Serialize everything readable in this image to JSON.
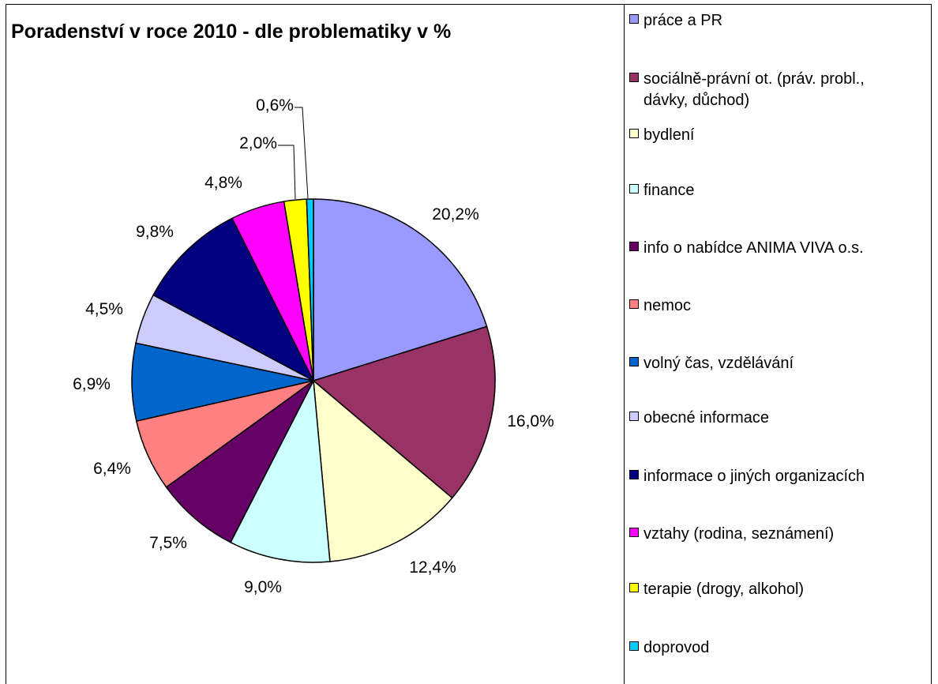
{
  "chart_data": {
    "type": "pie",
    "title": "Poradenství v roce 2010 - dle problematiky v %",
    "legend_position": "right",
    "slices": [
      {
        "name": "práce a PR",
        "value": 20.2,
        "label": "20,2%",
        "color": "#9999ff"
      },
      {
        "name": "sociálně-právní ot. (práv. probl.,\ndávky, důchod)",
        "value": 16.0,
        "label": "16,0%",
        "color": "#993366"
      },
      {
        "name": "bydlení",
        "value": 12.4,
        "label": "12,4%",
        "color": "#ffffcc"
      },
      {
        "name": "finance",
        "value": 9.0,
        "label": "9,0%",
        "color": "#ccffff"
      },
      {
        "name": "info o nabídce ANIMA VIVA o.s.",
        "value": 7.5,
        "label": "7,5%",
        "color": "#660066"
      },
      {
        "name": "nemoc",
        "value": 6.4,
        "label": "6,4%",
        "color": "#ff8080"
      },
      {
        "name": "volný čas, vzdělávání",
        "value": 6.9,
        "label": "6,9%",
        "color": "#0066cc"
      },
      {
        "name": "obecné informace",
        "value": 4.5,
        "label": "4,5%",
        "color": "#ccccff"
      },
      {
        "name": "informace o jiných organizacích",
        "value": 9.8,
        "label": "9,8%",
        "color": "#000080"
      },
      {
        "name": "vztahy (rodina, seznámení)",
        "value": 4.8,
        "label": "4,8%",
        "color": "#ff00ff"
      },
      {
        "name": "terapie (drogy, alkohol)",
        "value": 2.0,
        "label": "2,0%",
        "color": "#ffff00"
      },
      {
        "name": "doprovod",
        "value": 0.6,
        "label": "0,6%",
        "color": "#00ccff"
      }
    ]
  }
}
